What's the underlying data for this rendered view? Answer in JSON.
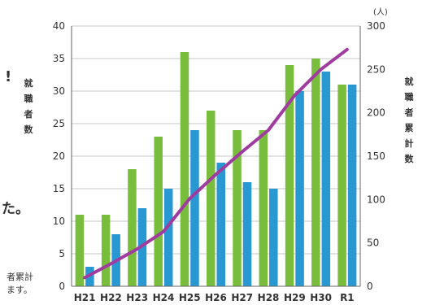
{
  "chart_data": {
    "type": "bar",
    "categories": [
      "H21",
      "H22",
      "H23",
      "H24",
      "H25",
      "H26",
      "H27",
      "H28",
      "H29",
      "H30",
      "R1"
    ],
    "series": [
      {
        "name": "",
        "kind": "bar",
        "axis": "left",
        "color": "#78be3c",
        "values": [
          11,
          11,
          18,
          23,
          36,
          27,
          24,
          24,
          34,
          35,
          31
        ]
      },
      {
        "name": "",
        "kind": "bar",
        "axis": "left",
        "color": "#2898d2",
        "values": [
          3,
          8,
          12,
          15,
          24,
          19,
          16,
          15,
          30,
          33,
          31
        ]
      },
      {
        "name": "",
        "kind": "line",
        "axis": "right",
        "color": "#a03ca0",
        "values": [
          10,
          26,
          43,
          63,
          101,
          129,
          155,
          180,
          220,
          250,
          273
        ]
      }
    ],
    "left_axis": {
      "label_chars": [
        "就",
        "職",
        "者",
        "数"
      ],
      "ylim": [
        0,
        40
      ],
      "ticks": [
        0,
        5,
        10,
        15,
        20,
        25,
        30,
        35,
        40
      ]
    },
    "right_axis": {
      "label_chars": [
        "就",
        "職",
        "者",
        "累",
        "計",
        "数"
      ],
      "unit": "(人)",
      "ylim": [
        0,
        300
      ],
      "ticks": [
        0,
        50,
        100,
        150,
        200,
        250,
        300
      ]
    },
    "grid": true
  },
  "page_fragments": {
    "exclaim": "!",
    "ta_text": "た。",
    "note_line1": "者累計",
    "note_line2": "ます。"
  }
}
